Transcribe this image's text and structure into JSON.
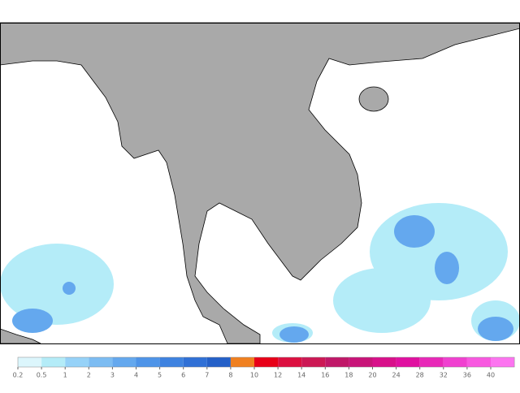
{
  "colorbar": {
    "labels": [
      0.2,
      0.5,
      1,
      2,
      3,
      4,
      5,
      6,
      7,
      8,
      10,
      12,
      14,
      16,
      18,
      20,
      24,
      28,
      32,
      36,
      40
    ],
    "colors": [
      "#dcf6fc",
      "#b4ecf8",
      "#96d2f8",
      "#7cbcf2",
      "#64a8ee",
      "#4e94e8",
      "#3e82e0",
      "#3070d6",
      "#2460c8",
      "#f08020",
      "#e80018",
      "#dc1040",
      "#cc1854",
      "#c01868",
      "#c81478",
      "#d8108a",
      "#e010a0",
      "#e828b8",
      "#f040d0",
      "#f858e0",
      "#fc74f0"
    ]
  }
}
